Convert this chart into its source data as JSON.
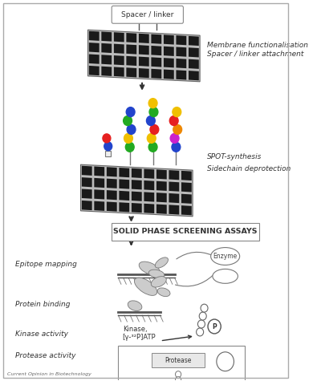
{
  "bg_color": "#f5f4f0",
  "inner_bg": "#ffffff",
  "border_color": "#aaaaaa",
  "text_color": "#333333",
  "caption_text": "Current Opinion in Biotechnology",
  "sections": {
    "spacer_label": "Spacer / linker",
    "membrane_text1": "Membrane functionalisation",
    "membrane_text2": "Spacer / linker attachment",
    "spot_text1": "SPOT-synthesis",
    "spot_text2": "Sidechain deprotection",
    "solid_phase": "SOLID PHASE SCREENING ASSAYS",
    "epitope": "Epitope mapping",
    "protein": "Protein binding",
    "enzyme": "Enzyme",
    "kinase": "Kinase activity",
    "kinase_label1": "Kinase,",
    "kinase_label2": "[γ-³²P]ATP",
    "protease": "Protease activity",
    "protease_label": "Protease"
  },
  "amino_colors": [
    "#2244cc",
    "#e62020",
    "#f0c000",
    "#22aa22",
    "#cc22cc",
    "#ee8800"
  ],
  "arrow_color": "#333333",
  "grid_bg": "#cccccc",
  "grid_cell": "#222222"
}
